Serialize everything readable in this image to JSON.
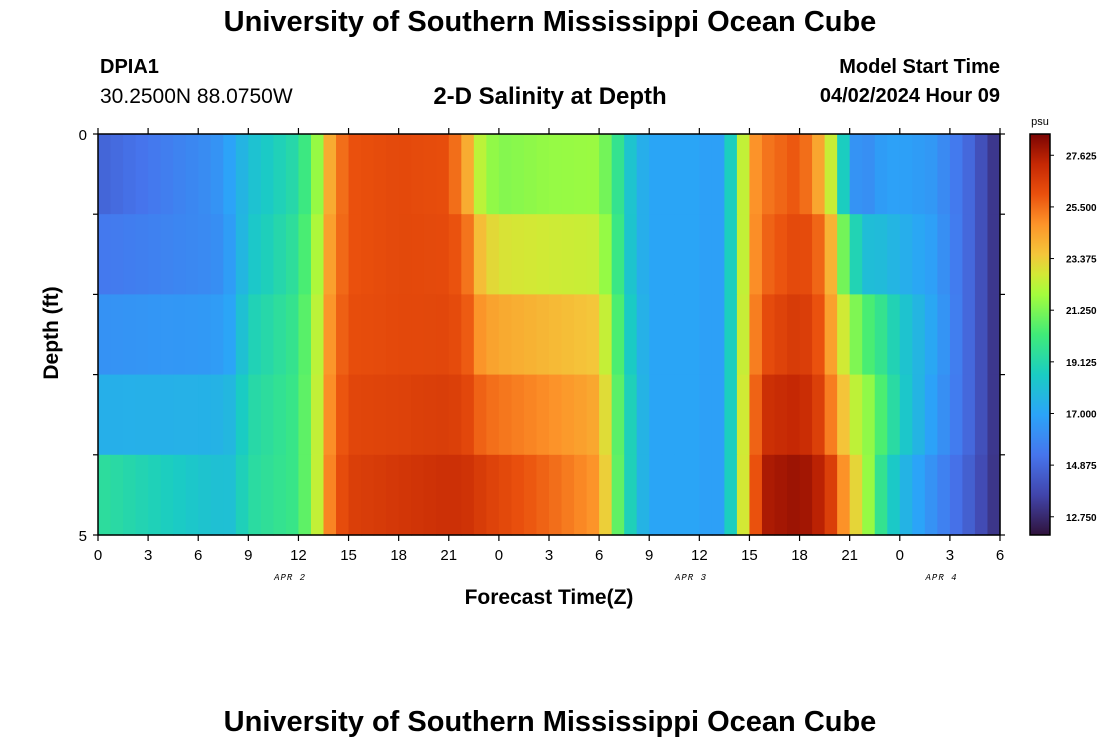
{
  "header": {
    "title": "University of Southern Mississippi Ocean Cube",
    "station_id": "DPIA1",
    "station_coords": "30.2500N  88.0750W",
    "plot_title": "2-D Salinity at Depth",
    "model_label": "Model Start Time",
    "model_time": "04/02/2024 Hour 09"
  },
  "footer": {
    "title": "University of Southern Mississippi Ocean Cube"
  },
  "chart_data": {
    "type": "heatmap",
    "title": "2-D Salinity at Depth",
    "xlabel": "Forecast Time(Z)",
    "ylabel": "Depth (ft)",
    "x_tick_labels": [
      "0",
      "3",
      "6",
      "9",
      "12",
      "15",
      "18",
      "21",
      "0",
      "3",
      "6",
      "9",
      "12",
      "15",
      "18",
      "21",
      "0",
      "3",
      "6"
    ],
    "x_range_hours": [
      0,
      54
    ],
    "date_labels": [
      {
        "label": "APR 2",
        "hour": 11.5
      },
      {
        "label": "APR 3",
        "hour": 35.5
      },
      {
        "label": "APR 4",
        "hour": 50.5
      }
    ],
    "y_tick_labels": [
      {
        "label": "0",
        "depth": 0
      },
      {
        "label": "5",
        "depth": 5
      }
    ],
    "y_range": [
      0,
      5
    ],
    "depth_levels": 5,
    "colorbar": {
      "unit": "psu",
      "min": 12.0,
      "max": 28.5,
      "tick_labels": [
        "27.625",
        "25.500",
        "23.375",
        "21.250",
        "19.125",
        "17.000",
        "14.875",
        "12.750"
      ],
      "tick_values": [
        27.625,
        25.5,
        23.375,
        21.25,
        19.125,
        17.0,
        14.875,
        12.75
      ]
    },
    "profile_hours": [
      0,
      7,
      8,
      9,
      12,
      13,
      14,
      15,
      18,
      21,
      22,
      23,
      24,
      27,
      30,
      31,
      32,
      33,
      36,
      37,
      38,
      39,
      40,
      42,
      43,
      44,
      45,
      46,
      47,
      48,
      50,
      52,
      54
    ],
    "profiles": [
      [
        14.4,
        16.5,
        17.2,
        18.0,
        19.2,
        21.0,
        24.5,
        26.0,
        26.2,
        26.0,
        23.5,
        21.0,
        20.5,
        21.3,
        21.5,
        20.0,
        18.0,
        17.0,
        17.0,
        16.5,
        19.0,
        24.5,
        25.2,
        25.8,
        23.5,
        21.0,
        15.0,
        15.8,
        16.5,
        16.8,
        16.5,
        15.0,
        12.8
      ],
      [
        15.0,
        16.0,
        16.8,
        18.0,
        19.5,
        21.5,
        24.8,
        26.0,
        26.3,
        26.2,
        25.5,
        23.0,
        22.2,
        22.0,
        22.0,
        20.0,
        18.0,
        17.0,
        17.0,
        16.5,
        19.0,
        24.5,
        25.5,
        26.2,
        25.8,
        23.5,
        18.0,
        16.5,
        17.0,
        17.0,
        16.5,
        15.0,
        12.8
      ],
      [
        15.8,
        16.2,
        16.8,
        18.5,
        19.8,
        21.8,
        25.0,
        26.0,
        26.2,
        26.2,
        25.8,
        24.0,
        23.6,
        23.3,
        23.0,
        20.5,
        18.0,
        17.0,
        17.0,
        16.5,
        19.0,
        24.5,
        25.8,
        26.5,
        26.0,
        24.0,
        21.0,
        19.5,
        18.8,
        18.0,
        17.0,
        15.0,
        12.8
      ],
      [
        16.8,
        17.0,
        17.3,
        19.0,
        20.0,
        22.0,
        25.3,
        26.2,
        26.3,
        26.4,
        26.2,
        25.2,
        25.0,
        24.5,
        24.0,
        21.0,
        18.5,
        17.0,
        17.0,
        16.5,
        19.0,
        24.8,
        26.5,
        27.0,
        26.5,
        24.5,
        22.5,
        21.5,
        20.5,
        19.0,
        17.0,
        15.0,
        12.8
      ],
      [
        18.0,
        18.0,
        18.2,
        19.2,
        20.0,
        22.0,
        25.4,
        26.4,
        26.6,
        26.8,
        26.6,
        26.0,
        25.8,
        25.3,
        24.5,
        21.0,
        18.5,
        17.0,
        17.0,
        16.5,
        19.0,
        25.0,
        27.5,
        27.6,
        27.0,
        25.5,
        23.0,
        22.0,
        20.0,
        18.5,
        16.5,
        15.0,
        12.8
      ],
      [
        20.5,
        18.2,
        18.0,
        19.3,
        20.0,
        22.0,
        25.6,
        26.6,
        26.9,
        27.2,
        27.2,
        27.0,
        26.7,
        25.8,
        24.8,
        21.2,
        18.5,
        17.0,
        17.0,
        16.5,
        19.0,
        25.0,
        27.8,
        28.3,
        28.0,
        27.0,
        24.5,
        22.0,
        19.0,
        17.5,
        16.0,
        14.5,
        12.8
      ]
    ]
  }
}
